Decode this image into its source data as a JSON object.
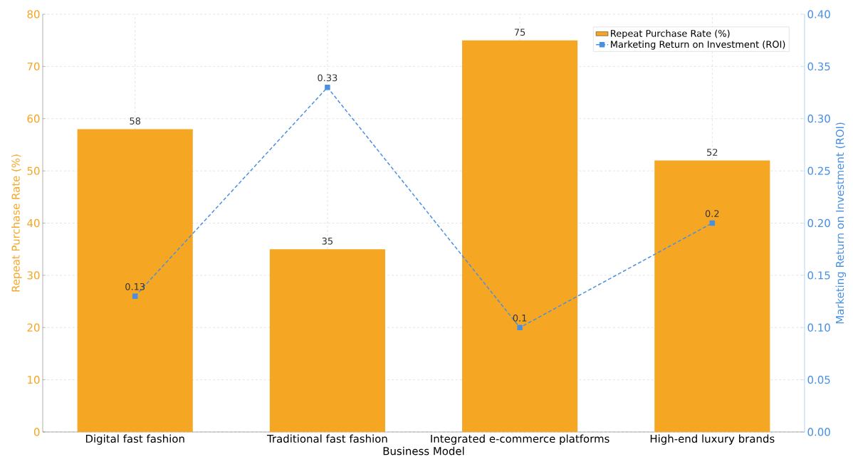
{
  "chart_data": {
    "type": "bar",
    "xlabel": "Business Model",
    "ylabel": "Repeat Purchase Rate (%)",
    "y2label": "Marketing Return on Investment (ROI)",
    "categories": [
      "Digital fast fashion",
      "Traditional fast fashion",
      "Integrated e-commerce platforms",
      "High-end luxury brands"
    ],
    "series": [
      {
        "name": "Repeat Purchase Rate (%)",
        "color": "#f5a623",
        "values": [
          58,
          35,
          75,
          52
        ]
      },
      {
        "name": "Marketing Return on Investment (ROI)",
        "type": "line",
        "axis": "y2",
        "color": "#4a90e2",
        "marker": "square",
        "line_style": "dashed",
        "values": [
          0.13,
          0.33,
          0.1,
          0.2
        ]
      }
    ],
    "ylim": [
      0,
      80
    ],
    "yticks": [
      0,
      10,
      20,
      30,
      40,
      50,
      60,
      70,
      80
    ],
    "y2lim": [
      0,
      0.4
    ],
    "y2ticks": [
      {
        "value": 0,
        "label": "0.00"
      },
      {
        "value": 0.05,
        "label": "0.05"
      },
      {
        "value": 0.1,
        "label": "0.10"
      },
      {
        "value": 0.15,
        "label": "0.15"
      },
      {
        "value": 0.2,
        "label": "0.20"
      },
      {
        "value": 0.25,
        "label": "0.25"
      },
      {
        "value": 0.3,
        "label": "0.30"
      },
      {
        "value": 0.35,
        "label": "0.35"
      },
      {
        "value": 0.4,
        "label": "0.40"
      }
    ],
    "grid": true,
    "legend": "top right",
    "data_labels": true
  }
}
